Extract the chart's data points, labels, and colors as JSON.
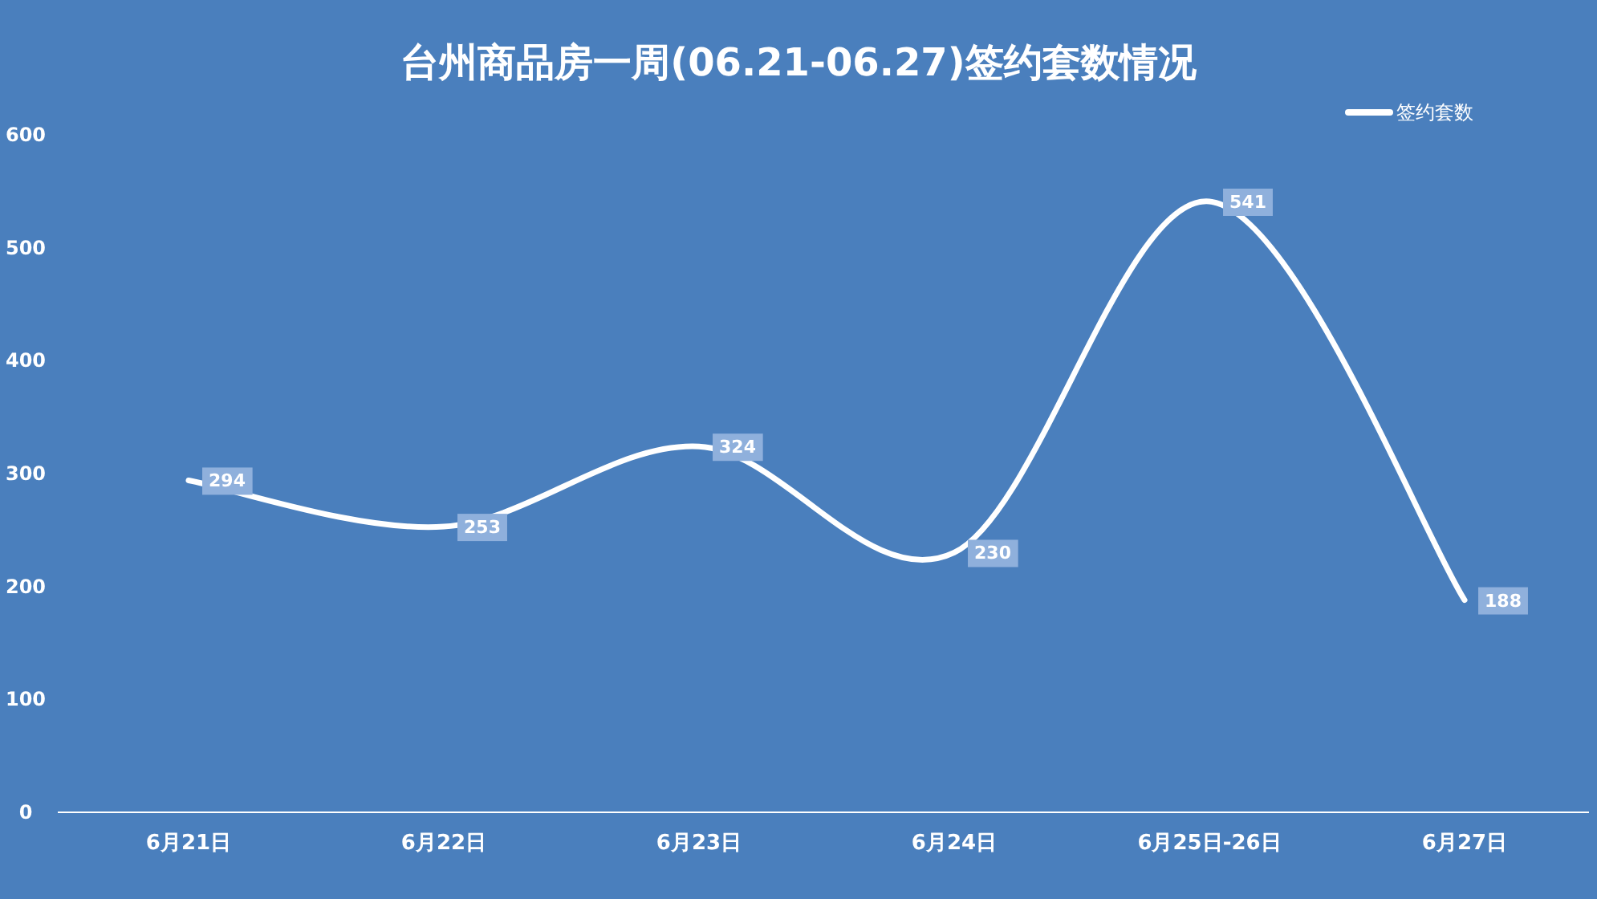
{
  "chart_data": {
    "type": "line",
    "title": "台州商品房一周(06.21-06.27)签约套数情况",
    "categories": [
      "6月21日",
      "6月22日",
      "6月23日",
      "6月24日",
      "6月25日-26日",
      "6月27日"
    ],
    "series": [
      {
        "name": "签约套数",
        "color": "#ffffff",
        "values": [
          294,
          253,
          324,
          230,
          541,
          188
        ]
      }
    ],
    "ylim": [
      0,
      600
    ],
    "yticks": [
      0,
      100,
      200,
      300,
      400,
      500,
      600
    ],
    "data_labels": true,
    "legend": "top right",
    "grid": false,
    "marker": "none",
    "line_style": "solid"
  }
}
